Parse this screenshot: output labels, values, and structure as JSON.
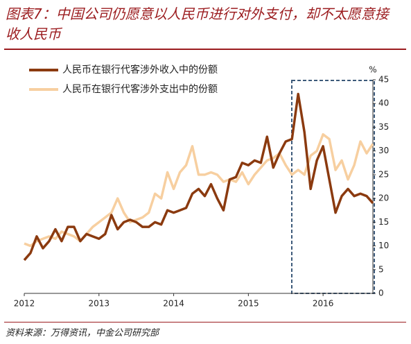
{
  "title": "图表7：中国公司仍愿意以人民币进行对外支付，却不太愿意接收人民币",
  "source": "资料来源：万得资讯，中金公司研究部",
  "chart_data": {
    "type": "line",
    "y_unit": "%",
    "categories": [
      "2012",
      null,
      null,
      null,
      null,
      null,
      null,
      null,
      null,
      null,
      null,
      null,
      "2013",
      null,
      null,
      null,
      null,
      null,
      null,
      null,
      null,
      null,
      null,
      null,
      "2014",
      null,
      null,
      null,
      null,
      null,
      null,
      null,
      null,
      null,
      null,
      null,
      "2015",
      null,
      null,
      null,
      null,
      null,
      null,
      null,
      null,
      null,
      null,
      null,
      "2016",
      null,
      null,
      null,
      null,
      null,
      null,
      null,
      null
    ],
    "series": [
      {
        "name": "人民币在银行代客涉外收入中的份额",
        "color": "#8b3a0f",
        "values": [
          7,
          8.5,
          12,
          9.5,
          11,
          13.5,
          11,
          14,
          14,
          11,
          12.5,
          12,
          11.5,
          12.5,
          16.5,
          13.5,
          15,
          15.5,
          15,
          14,
          14,
          15,
          14.5,
          17.5,
          17,
          17.5,
          18,
          21,
          22,
          20.5,
          23,
          20,
          17.5,
          24,
          24.5,
          27.5,
          27,
          28,
          27.5,
          33,
          26.5,
          29.5,
          32,
          32.5,
          42,
          34,
          22,
          28,
          31,
          24,
          17,
          20.5,
          22,
          20.5,
          21,
          20.5,
          19
        ]
      },
      {
        "name": "人民币在银行代客涉外支出中的份额",
        "color": "#f7cfa0",
        "values": [
          10.5,
          10,
          11,
          11.5,
          12,
          11.5,
          13,
          12.5,
          12,
          11,
          12.5,
          14,
          15,
          16,
          17,
          20,
          17,
          15,
          15.5,
          16,
          17,
          21,
          20,
          25.5,
          22,
          25.5,
          27,
          31,
          25,
          25,
          25.5,
          25,
          23.5,
          24,
          23.5,
          25.5,
          23,
          25,
          26.5,
          28,
          28.5,
          29.5,
          27,
          25,
          26,
          25,
          29,
          30,
          33.5,
          32.5,
          26,
          28,
          24,
          27,
          32,
          29.5,
          31.5
        ]
      }
    ],
    "ylim": [
      0,
      45
    ],
    "yticks": [
      0,
      5,
      10,
      15,
      20,
      25,
      30,
      35,
      40,
      45
    ],
    "y_axis_side": "right",
    "legend": "upper left",
    "grid": false
  }
}
